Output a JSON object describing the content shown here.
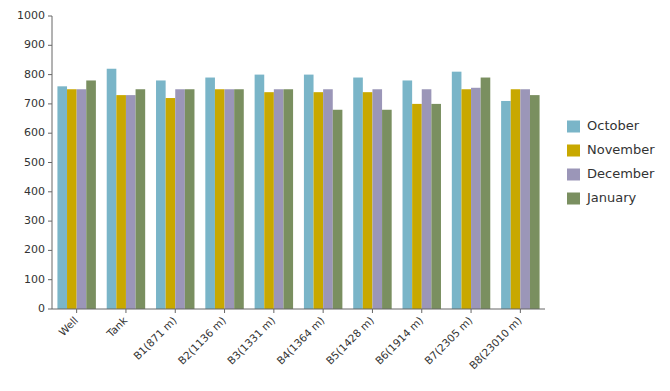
{
  "chart_data": {
    "type": "bar",
    "categories": [
      "Well",
      "Tank",
      "B1(871 m)",
      "B2(1136 m)",
      "B3(1331 m)",
      "B4(1364 m)",
      "B5(1428 m)",
      "B6(1914 m)",
      "B7(2305 m)",
      "B8(23010 m)"
    ],
    "series": [
      {
        "name": "October",
        "color": "#7ab5c8",
        "values": [
          760,
          820,
          780,
          790,
          800,
          800,
          790,
          780,
          810,
          710
        ]
      },
      {
        "name": "November",
        "color": "#c8a800",
        "values": [
          750,
          730,
          720,
          750,
          740,
          740,
          740,
          700,
          750,
          750
        ]
      },
      {
        "name": "December",
        "color": "#9b96b8",
        "values": [
          750,
          730,
          750,
          750,
          750,
          750,
          750,
          750,
          755,
          750
        ]
      },
      {
        "name": "January",
        "color": "#7a8f60",
        "values": [
          780,
          750,
          750,
          750,
          750,
          680,
          680,
          700,
          790,
          730
        ]
      }
    ],
    "ylim": [
      0,
      1000
    ],
    "yticks": [
      0,
      100,
      200,
      300,
      400,
      500,
      600,
      700,
      800,
      900,
      1000
    ],
    "grid": false,
    "legend": "right"
  }
}
